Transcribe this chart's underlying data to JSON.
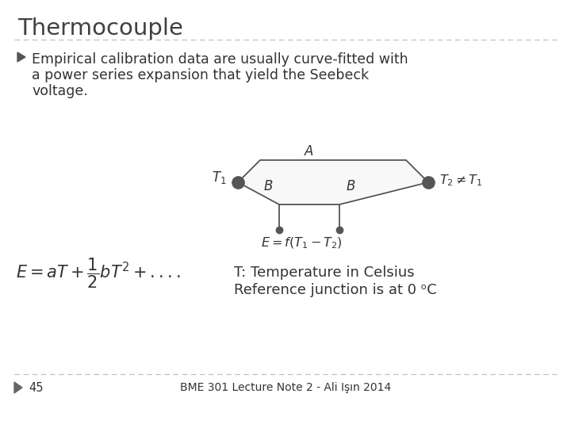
{
  "title": "Thermocouple",
  "bullet_text_line1": "Empirical calibration data are usually curve-fitted with",
  "bullet_text_line2": "a power series expansion that yield the Seebeck",
  "bullet_text_line3": "voltage.",
  "formula": "$E = aT + \\dfrac{1}{2}bT^2 + ....$",
  "diagram_label_T1": "$T_1$",
  "diagram_label_T2": "$T_2 \\neq T_1$",
  "diagram_label_A": "$A$",
  "diagram_label_B1": "$B$",
  "diagram_label_B2": "$B$",
  "diagram_label_E": "$E = f(T_1 -T_2)$",
  "temp_note_line1": "T: Temperature in Celsius",
  "temp_note_line2": "Reference junction is at 0 ᵒC",
  "footer_page": "45",
  "footer_text": "BME 301 Lecture Note 2 - Ali Işın 2014",
  "background_color": "#ffffff",
  "title_color": "#404040",
  "text_color": "#333333",
  "dashed_line_color": "#bbbbbb",
  "diagram_color": "#555555",
  "diagram_fill": "#f0f0f0"
}
